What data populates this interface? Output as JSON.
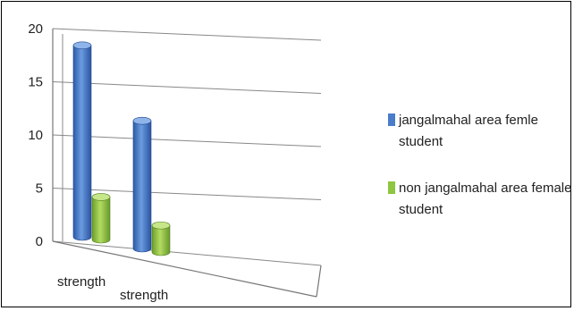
{
  "chart_data": {
    "type": "bar",
    "title": "",
    "xlabel": "",
    "ylabel": "",
    "ylim": [
      0,
      20
    ],
    "yticks": [
      0,
      5,
      10,
      15,
      20
    ],
    "categories": [
      "strength",
      "strength"
    ],
    "series": [
      {
        "name": "jangalmahal area femle student",
        "values": [
          18,
          12
        ],
        "color": "#4a7cc9"
      },
      {
        "name": "non jangalmahal area female student",
        "values": [
          4,
          2.5
        ],
        "color": "#8dc63f"
      }
    ],
    "legend_position": "right",
    "grid": true,
    "style": "3d-cylinder"
  }
}
